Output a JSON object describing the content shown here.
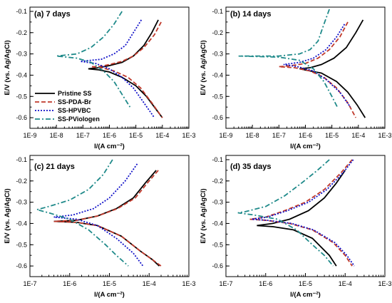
{
  "chart_data": [
    {
      "type": "line",
      "title": "(a) 7 days",
      "xlabel": "I/(A cm⁻²)",
      "ylabel": "E/V (vs. Ag/AgCl)",
      "x_scale": "log",
      "xlim": [
        1e-09,
        0.001
      ],
      "ylim": [
        -0.65,
        -0.08
      ],
      "xticks": [
        "1E-9",
        "1E-8",
        "1E-7",
        "1E-6",
        "1E-5",
        "1E-4",
        "1E-3"
      ],
      "yticks": [
        "-0.1",
        "-0.2",
        "-0.3",
        "-0.4",
        "-0.5",
        "-0.6"
      ],
      "legend_position": "lower-left",
      "series": [
        {
          "name": "Pristine SS",
          "color": "#000000",
          "style": "solid",
          "points": [
            [
              7e-05,
              -0.14
            ],
            [
              4e-05,
              -0.2
            ],
            [
              2e-05,
              -0.26
            ],
            [
              8e-06,
              -0.31
            ],
            [
              3e-06,
              -0.34
            ],
            [
              1e-06,
              -0.355
            ],
            [
              4e-07,
              -0.365
            ],
            [
              1.6e-07,
              -0.37
            ],
            [
              4e-07,
              -0.375
            ],
            [
              1e-06,
              -0.385
            ],
            [
              3e-06,
              -0.41
            ],
            [
              1e-05,
              -0.45
            ],
            [
              2.5e-05,
              -0.5
            ],
            [
              5e-05,
              -0.55
            ],
            [
              0.0001,
              -0.6
            ]
          ]
        },
        {
          "name": "SS-PDA-Br",
          "color": "#c0392b",
          "style": "dash",
          "points": [
            [
              9e-05,
              -0.15
            ],
            [
              5e-05,
              -0.21
            ],
            [
              2e-05,
              -0.27
            ],
            [
              8e-06,
              -0.31
            ],
            [
              3e-06,
              -0.335
            ],
            [
              1e-06,
              -0.35
            ],
            [
              4e-07,
              -0.36
            ],
            [
              2e-07,
              -0.36
            ],
            [
              5e-07,
              -0.365
            ],
            [
              1.5e-06,
              -0.38
            ],
            [
              5e-06,
              -0.41
            ],
            [
              1.5e-05,
              -0.46
            ],
            [
              4e-05,
              -0.53
            ],
            [
              0.0001,
              -0.6
            ]
          ]
        },
        {
          "name": "SS-HPVBC",
          "color": "#1010c8",
          "style": "dot",
          "points": [
            [
              1.6e-05,
              -0.14
            ],
            [
              8e-06,
              -0.2
            ],
            [
              4e-06,
              -0.26
            ],
            [
              1.5e-06,
              -0.3
            ],
            [
              5e-07,
              -0.325
            ],
            [
              2e-07,
              -0.33
            ],
            [
              8e-08,
              -0.335
            ],
            [
              3e-07,
              -0.345
            ],
            [
              1e-06,
              -0.37
            ],
            [
              3e-06,
              -0.41
            ],
            [
              8e-06,
              -0.46
            ],
            [
              2e-05,
              -0.53
            ],
            [
              5e-05,
              -0.6
            ]
          ]
        },
        {
          "name": "SS-PViologen",
          "color": "#1f8a8a",
          "style": "dashdot",
          "points": [
            [
              3e-06,
              -0.1
            ],
            [
              1.5e-06,
              -0.16
            ],
            [
              6e-07,
              -0.22
            ],
            [
              2e-07,
              -0.27
            ],
            [
              6e-08,
              -0.3
            ],
            [
              1e-08,
              -0.31
            ],
            [
              6e-08,
              -0.32
            ],
            [
              2e-07,
              -0.34
            ],
            [
              6e-07,
              -0.38
            ],
            [
              1.5e-06,
              -0.43
            ],
            [
              3e-06,
              -0.49
            ],
            [
              6e-06,
              -0.55
            ]
          ]
        }
      ]
    },
    {
      "type": "line",
      "title": "(b) 14 days",
      "xlabel": "I/(A cm⁻²)",
      "ylabel": "E/V (vs. Ag/AgCl)",
      "x_scale": "log",
      "xlim": [
        1e-09,
        0.001
      ],
      "ylim": [
        -0.65,
        -0.08
      ],
      "xticks": [
        "1E-9",
        "1E-8",
        "1E-7",
        "1E-6",
        "1E-5",
        "1E-4",
        "1E-3"
      ],
      "yticks": [
        "-0.1",
        "-0.2",
        "-0.3",
        "-0.4",
        "-0.5",
        "-0.6"
      ],
      "series": [
        {
          "name": "Pristine SS",
          "color": "#000000",
          "style": "solid",
          "points": [
            [
              0.00015,
              -0.14
            ],
            [
              8e-05,
              -0.2
            ],
            [
              3.5e-05,
              -0.27
            ],
            [
              1.2e-05,
              -0.32
            ],
            [
              4e-06,
              -0.35
            ],
            [
              1.5e-06,
              -0.365
            ],
            [
              6e-07,
              -0.37
            ],
            [
              1.5e-06,
              -0.38
            ],
            [
              4e-06,
              -0.39
            ],
            [
              1.5e-05,
              -0.43
            ],
            [
              4e-05,
              -0.48
            ],
            [
              9e-05,
              -0.54
            ],
            [
              0.00018,
              -0.6
            ]
          ]
        },
        {
          "name": "SS-PDA-Br",
          "color": "#c0392b",
          "style": "dash",
          "points": [
            [
              4e-05,
              -0.15
            ],
            [
              2e-05,
              -0.22
            ],
            [
              8e-06,
              -0.28
            ],
            [
              3e-06,
              -0.32
            ],
            [
              1e-06,
              -0.345
            ],
            [
              3e-07,
              -0.355
            ],
            [
              1e-07,
              -0.36
            ],
            [
              4e-07,
              -0.365
            ],
            [
              1.5e-06,
              -0.38
            ],
            [
              5e-06,
              -0.41
            ],
            [
              1.5e-05,
              -0.46
            ],
            [
              4e-05,
              -0.53
            ],
            [
              8e-05,
              -0.6
            ]
          ]
        },
        {
          "name": "SS-HPVBC",
          "color": "#1010c8",
          "style": "dot",
          "points": [
            [
              3e-05,
              -0.16
            ],
            [
              1.5e-05,
              -0.22
            ],
            [
              6e-06,
              -0.28
            ],
            [
              2e-06,
              -0.32
            ],
            [
              6e-07,
              -0.34
            ],
            [
              1.5e-07,
              -0.35
            ],
            [
              5e-07,
              -0.36
            ],
            [
              2e-06,
              -0.38
            ],
            [
              6e-06,
              -0.42
            ],
            [
              2e-05,
              -0.48
            ],
            [
              5e-05,
              -0.55
            ]
          ]
        },
        {
          "name": "SS-PViologen",
          "color": "#1f8a8a",
          "style": "dashdot",
          "points": [
            [
              8e-06,
              -0.09
            ],
            [
              5e-06,
              -0.16
            ],
            [
              3e-06,
              -0.24
            ],
            [
              1.5e-06,
              -0.28
            ],
            [
              6e-07,
              -0.3
            ],
            [
              1e-07,
              -0.31
            ],
            [
              3e-09,
              -0.31
            ],
            [
              1e-07,
              -0.315
            ],
            [
              6e-07,
              -0.33
            ],
            [
              2e-06,
              -0.37
            ],
            [
              5e-06,
              -0.43
            ],
            [
              1e-05,
              -0.5
            ],
            [
              1.6e-05,
              -0.55
            ]
          ]
        }
      ]
    },
    {
      "type": "line",
      "title": "(c) 21 days",
      "xlabel": "I/(A cm⁻²)",
      "ylabel": "E/V (vs. Ag/AgCl)",
      "x_scale": "log",
      "xlim": [
        1e-07,
        0.001
      ],
      "ylim": [
        -0.65,
        -0.08
      ],
      "xticks": [
        "1E-7",
        "1E-6",
        "1E-5",
        "1E-4",
        "1E-3"
      ],
      "yticks": [
        "-0.1",
        "-0.2",
        "-0.3",
        "-0.4",
        "-0.5",
        "-0.6"
      ],
      "series": [
        {
          "name": "Pristine SS",
          "color": "#000000",
          "style": "solid",
          "points": [
            [
              0.00015,
              -0.15
            ],
            [
              8e-05,
              -0.21
            ],
            [
              4e-05,
              -0.28
            ],
            [
              1.5e-05,
              -0.33
            ],
            [
              5e-06,
              -0.365
            ],
            [
              1.5e-06,
              -0.385
            ],
            [
              4e-07,
              -0.39
            ],
            [
              1.5e-06,
              -0.395
            ],
            [
              5e-06,
              -0.41
            ],
            [
              2e-05,
              -0.46
            ],
            [
              6e-05,
              -0.53
            ],
            [
              0.00012,
              -0.57
            ],
            [
              0.00018,
              -0.6
            ]
          ]
        },
        {
          "name": "SS-PDA-Br",
          "color": "#c0392b",
          "style": "dash",
          "points": [
            [
              0.00017,
              -0.15
            ],
            [
              9e-05,
              -0.21
            ],
            [
              4.5e-05,
              -0.28
            ],
            [
              1.6e-05,
              -0.33
            ],
            [
              5e-06,
              -0.365
            ],
            [
              1.5e-06,
              -0.385
            ],
            [
              4e-07,
              -0.39
            ],
            [
              1.5e-06,
              -0.395
            ],
            [
              5e-06,
              -0.41
            ],
            [
              2e-05,
              -0.46
            ],
            [
              6e-05,
              -0.53
            ],
            [
              0.00012,
              -0.57
            ],
            [
              0.0002,
              -0.6
            ]
          ]
        },
        {
          "name": "SS-HPVBC",
          "color": "#1010c8",
          "style": "dot",
          "points": [
            [
              5e-05,
              -0.12
            ],
            [
              2.5e-05,
              -0.2
            ],
            [
              1e-05,
              -0.28
            ],
            [
              4e-06,
              -0.33
            ],
            [
              1.2e-06,
              -0.36
            ],
            [
              4e-07,
              -0.37
            ],
            [
              1.5e-06,
              -0.38
            ],
            [
              5e-06,
              -0.41
            ],
            [
              1.5e-05,
              -0.47
            ],
            [
              4e-05,
              -0.54
            ],
            [
              7e-05,
              -0.6
            ]
          ]
        },
        {
          "name": "SS-PViologen",
          "color": "#1f8a8a",
          "style": "dashdot",
          "points": [
            [
              1.2e-05,
              -0.1
            ],
            [
              7e-06,
              -0.17
            ],
            [
              3e-06,
              -0.24
            ],
            [
              1e-06,
              -0.29
            ],
            [
              3e-07,
              -0.32
            ],
            [
              1.5e-07,
              -0.335
            ],
            [
              3e-07,
              -0.35
            ],
            [
              1e-06,
              -0.38
            ],
            [
              3e-06,
              -0.43
            ],
            [
              8e-06,
              -0.5
            ],
            [
              1.5e-05,
              -0.55
            ],
            [
              3e-05,
              -0.6
            ]
          ]
        }
      ]
    },
    {
      "type": "line",
      "title": "(d) 35 days",
      "xlabel": "I/(A cm⁻²)",
      "ylabel": "E/V (vs. Ag/AgCl)",
      "x_scale": "log",
      "xlim": [
        1e-07,
        0.001
      ],
      "ylim": [
        -0.65,
        -0.08
      ],
      "xticks": [
        "1E-7",
        "1E-6",
        "1E-5",
        "1E-4",
        "1E-3"
      ],
      "yticks": [
        "-0.1",
        "-0.2",
        "-0.3",
        "-0.4",
        "-0.5",
        "-0.6"
      ],
      "series": [
        {
          "name": "Pristine SS",
          "color": "#000000",
          "style": "solid",
          "points": [
            [
              0.0001,
              -0.15
            ],
            [
              6e-05,
              -0.21
            ],
            [
              3e-05,
              -0.28
            ],
            [
              1.2e-05,
              -0.34
            ],
            [
              4e-06,
              -0.38
            ],
            [
              1.5e-06,
              -0.4
            ],
            [
              6e-07,
              -0.41
            ],
            [
              1.5e-06,
              -0.415
            ],
            [
              5e-06,
              -0.43
            ],
            [
              1.5e-05,
              -0.47
            ],
            [
              4e-05,
              -0.55
            ],
            [
              6e-05,
              -0.6
            ]
          ]
        },
        {
          "name": "SS-PDA-Br",
          "color": "#c0392b",
          "style": "dash",
          "points": [
            [
              0.00015,
              -0.1
            ],
            [
              8e-05,
              -0.16
            ],
            [
              3e-05,
              -0.24
            ],
            [
              1e-05,
              -0.3
            ],
            [
              3e-06,
              -0.34
            ],
            [
              1e-06,
              -0.37
            ],
            [
              4e-07,
              -0.38
            ],
            [
              1e-06,
              -0.385
            ],
            [
              4e-06,
              -0.4
            ],
            [
              1.5e-05,
              -0.43
            ],
            [
              5e-05,
              -0.49
            ],
            [
              0.0001,
              -0.55
            ],
            [
              0.00015,
              -0.6
            ]
          ]
        },
        {
          "name": "SS-HPVBC",
          "color": "#1010c8",
          "style": "dot",
          "points": [
            [
              0.00016,
              -0.1
            ],
            [
              9e-05,
              -0.16
            ],
            [
              3.5e-05,
              -0.24
            ],
            [
              1.2e-05,
              -0.3
            ],
            [
              3.5e-06,
              -0.34
            ],
            [
              1.1e-06,
              -0.37
            ],
            [
              4.5e-07,
              -0.38
            ],
            [
              1.1e-06,
              -0.385
            ],
            [
              4.5e-06,
              -0.4
            ],
            [
              1.6e-05,
              -0.43
            ],
            [
              5.5e-05,
              -0.49
            ],
            [
              0.00011,
              -0.55
            ],
            [
              0.00017,
              -0.6
            ]
          ]
        },
        {
          "name": "SS-PViologen",
          "color": "#1f8a8a",
          "style": "dashdot",
          "points": [
            [
              4e-05,
              -0.1
            ],
            [
              2e-05,
              -0.15
            ],
            [
              8e-06,
              -0.21
            ],
            [
              3e-06,
              -0.27
            ],
            [
              1e-06,
              -0.32
            ],
            [
              3e-07,
              -0.345
            ],
            [
              2e-07,
              -0.35
            ],
            [
              5e-07,
              -0.36
            ],
            [
              2e-06,
              -0.38
            ],
            [
              6e-06,
              -0.43
            ],
            [
              1.5e-05,
              -0.5
            ],
            [
              3e-05,
              -0.55
            ],
            [
              5e-05,
              -0.6
            ]
          ]
        }
      ]
    }
  ]
}
